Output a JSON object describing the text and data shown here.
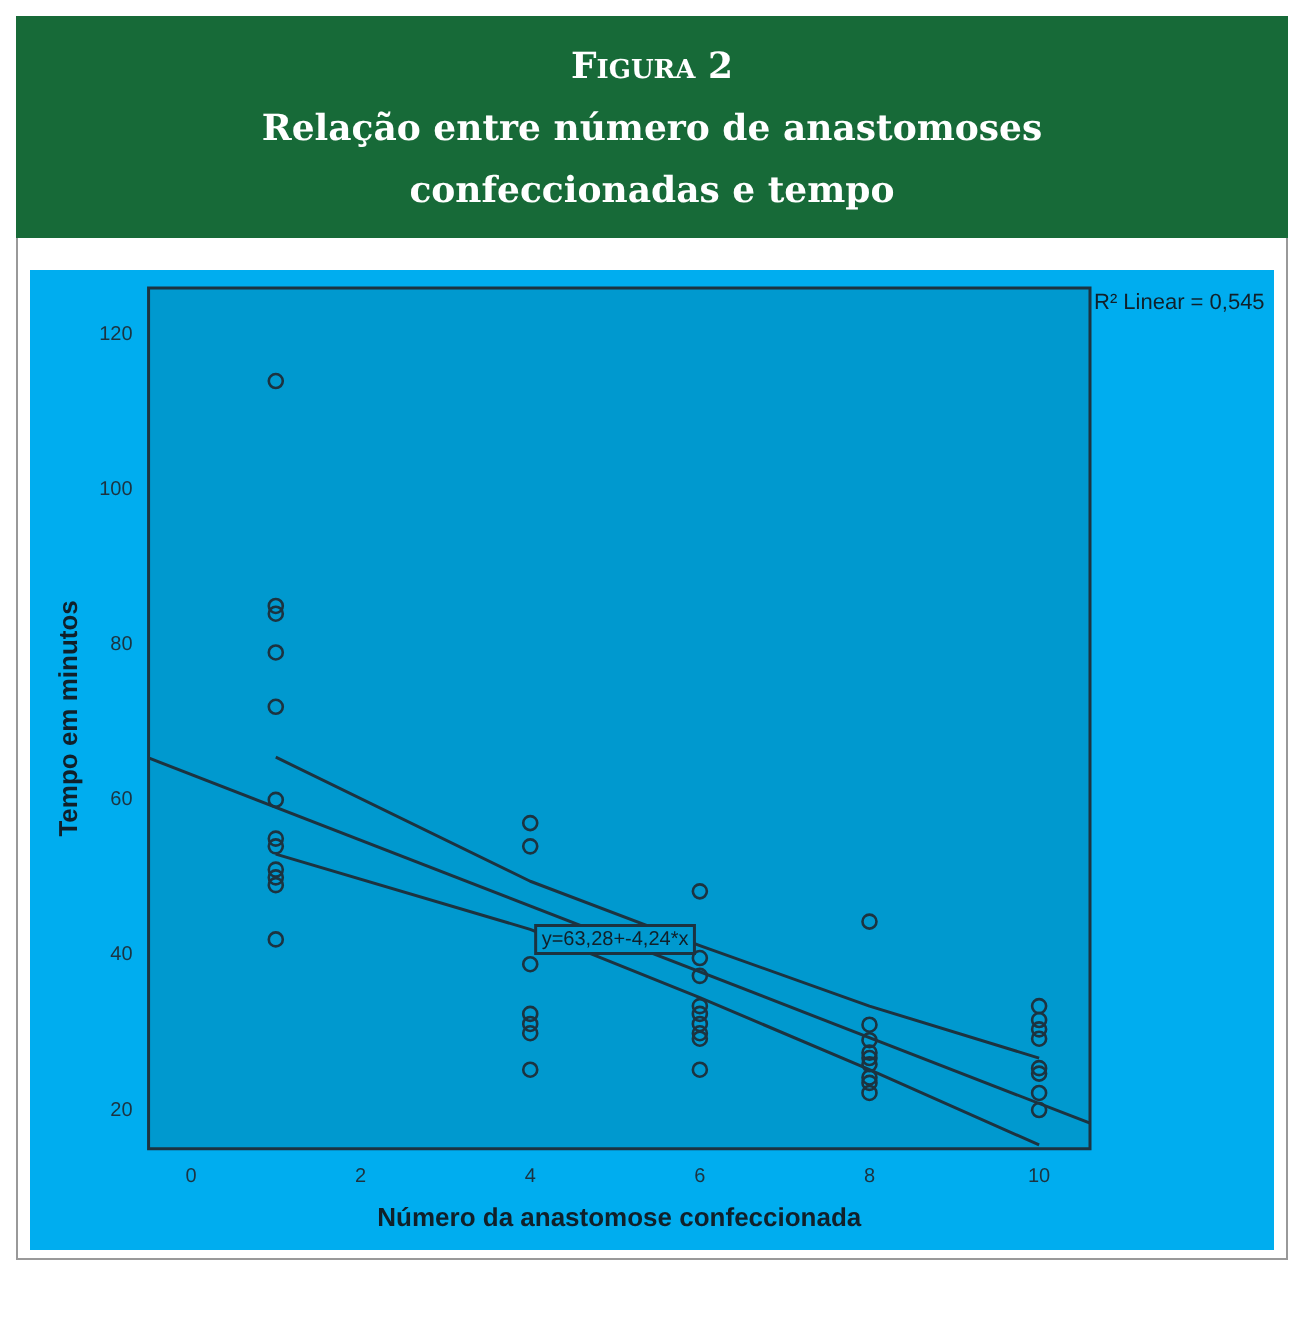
{
  "chart_data": {
    "type": "scatter",
    "title": "Figura 2",
    "subtitle": "Relação entre número de anastomoses confeccionadas e tempo",
    "xlabel": "Número da anastomose confeccionada",
    "ylabel": "Tempo em minutos",
    "x": [
      1,
      1,
      1,
      1,
      1,
      1,
      1,
      1,
      1,
      1,
      1,
      1,
      4,
      4,
      4,
      4,
      4,
      4,
      4,
      6,
      6,
      6,
      6,
      6,
      6,
      6,
      6,
      6,
      8,
      8,
      8,
      8,
      8,
      8,
      8,
      8,
      8,
      10,
      10,
      10,
      10,
      10,
      10,
      10,
      10
    ],
    "series": [
      {
        "type": "scatter",
        "color": "#1c3340",
        "values": [
          114,
          85,
          84,
          79,
          72,
          60,
          55,
          54,
          51,
          50,
          49,
          42,
          57,
          54,
          38.8,
          32.4,
          31.1,
          29.9,
          25.2,
          48.2,
          39.6,
          37.3,
          33.4,
          32.4,
          31.1,
          29.9,
          29.2,
          25.2,
          44.3,
          31,
          29,
          27.4,
          26.7,
          25.9,
          24.2,
          23.5,
          22.2,
          33.4,
          31.6,
          30.4,
          29.2,
          25.4,
          24.7,
          22.2,
          20
        ]
      },
      {
        "type": "line",
        "color": "#1c3340",
        "marker": "none",
        "x": [
          -0.5,
          10.6
        ],
        "values": [
          65.4,
          18.3
        ]
      },
      {
        "type": "line",
        "color": "#1c3340",
        "marker": "none",
        "x": [
          1,
          4,
          6,
          8,
          10
        ],
        "values": [
          65.5,
          49.5,
          41.2,
          33.4,
          26.7
        ]
      },
      {
        "type": "line",
        "color": "#1c3340",
        "marker": "none",
        "x": [
          1,
          4,
          6,
          8,
          10
        ],
        "values": [
          53,
          43.3,
          34.5,
          25.2,
          15.5
        ]
      }
    ],
    "xlim": [
      -0.5,
      10.6
    ],
    "ylim": [
      15,
      126
    ],
    "xticks": [
      0,
      2,
      4,
      6,
      8,
      10
    ],
    "yticks": [
      20,
      40,
      60,
      80,
      100,
      120
    ],
    "grid": false,
    "legend": false,
    "marker": "circle",
    "annotations": [
      {
        "text": "y=63,28+-4,24*x",
        "x": 5,
        "y": 42
      },
      "R² Linear = 0,545"
    ]
  }
}
